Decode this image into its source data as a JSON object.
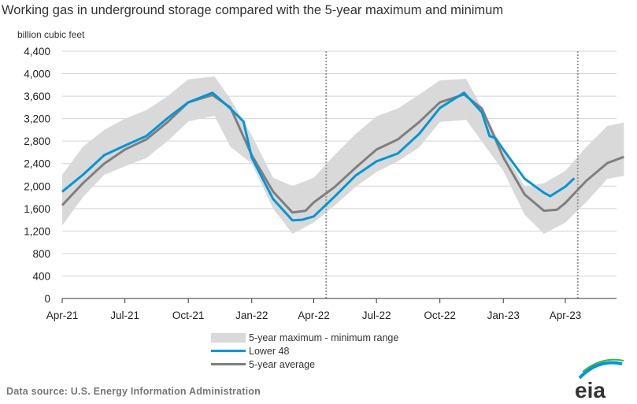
{
  "chart_data": {
    "type": "line",
    "title": "Working gas in underground  storage compared with the 5-year maximum and minimum",
    "ylabel": "billion cubic feet",
    "xlabel": "",
    "ylim": [
      0,
      4400
    ],
    "yticks": [
      "0",
      "400",
      "800",
      "1,200",
      "1,600",
      "2,000",
      "2,400",
      "2,800",
      "3,200",
      "3,600",
      "4,000",
      "4,400"
    ],
    "ytick_values": [
      0,
      400,
      800,
      1200,
      1600,
      2000,
      2400,
      2800,
      3200,
      3600,
      4000,
      4400
    ],
    "xticks": [
      {
        "label": "Apr-21",
        "date": "2021-04-01"
      },
      {
        "label": "Jul-21",
        "date": "2021-07-01"
      },
      {
        "label": "Oct-21",
        "date": "2021-10-01"
      },
      {
        "label": "Jan-22",
        "date": "2022-01-01"
      },
      {
        "label": "Apr-22",
        "date": "2022-04-01"
      },
      {
        "label": "Jul-22",
        "date": "2022-07-01"
      },
      {
        "label": "Oct-22",
        "date": "2022-10-01"
      },
      {
        "label": "Jan-23",
        "date": "2023-01-01"
      },
      {
        "label": "Apr-23",
        "date": "2023-04-01"
      }
    ],
    "grid": true,
    "reference_lines": [
      "2022-04-19",
      "2023-04-19"
    ],
    "legend_position": "bottom",
    "range": {
      "name": "5-year maximum - minimum range",
      "color": "#d9d9d9",
      "x": [
        "2021-04-01",
        "2021-05-01",
        "2021-06-01",
        "2021-07-01",
        "2021-08-01",
        "2021-09-01",
        "2021-10-01",
        "2021-11-08",
        "2021-12-01",
        "2022-01-01",
        "2022-02-01",
        "2022-03-01",
        "2022-04-01",
        "2022-05-01",
        "2022-06-01",
        "2022-07-01",
        "2022-08-01",
        "2022-09-01",
        "2022-10-01",
        "2022-11-08",
        "2022-12-01",
        "2023-01-01",
        "2023-02-01",
        "2023-03-01",
        "2023-04-01",
        "2023-05-01",
        "2023-06-01",
        "2023-06-25"
      ],
      "max": [
        2200,
        2700,
        3000,
        3200,
        3350,
        3600,
        3900,
        3950,
        3550,
        2900,
        2150,
        2000,
        2150,
        2550,
        2930,
        3240,
        3380,
        3630,
        3880,
        3910,
        3390,
        2650,
        1990,
        2050,
        2270,
        2690,
        3070,
        3130
      ],
      "min": [
        1300,
        1800,
        2200,
        2350,
        2500,
        2800,
        3150,
        3250,
        2700,
        2400,
        1600,
        1150,
        1350,
        1650,
        1990,
        2250,
        2440,
        2690,
        3140,
        3180,
        2790,
        2270,
        1490,
        1150,
        1350,
        1710,
        2130,
        2180
      ]
    },
    "series": [
      {
        "name": "Lower 48",
        "color": "#0096d6",
        "x": [
          "2021-04-01",
          "2021-04-20",
          "2021-05-01",
          "2021-06-01",
          "2021-07-01",
          "2021-08-01",
          "2021-09-01",
          "2021-10-01",
          "2021-11-05",
          "2021-11-20",
          "2021-12-01",
          "2021-12-20",
          "2022-01-01",
          "2022-02-01",
          "2022-03-01",
          "2022-03-15",
          "2022-04-01",
          "2022-05-01",
          "2022-06-01",
          "2022-07-01",
          "2022-08-01",
          "2022-09-01",
          "2022-10-01",
          "2022-11-05",
          "2022-12-01",
          "2022-12-12",
          "2022-12-20",
          "2023-01-01",
          "2023-02-01",
          "2023-03-01",
          "2023-03-10",
          "2023-04-01",
          "2023-04-14"
        ],
        "values": [
          1900,
          2090,
          2200,
          2550,
          2720,
          2890,
          3210,
          3490,
          3660,
          3500,
          3380,
          3150,
          2510,
          1770,
          1390,
          1400,
          1460,
          1810,
          2190,
          2440,
          2580,
          2930,
          3390,
          3660,
          3310,
          2890,
          2860,
          2650,
          2130,
          1880,
          1820,
          1990,
          2140
        ]
      },
      {
        "name": "5-year average",
        "color": "#7f7f7f",
        "x": [
          "2021-04-01",
          "2021-05-01",
          "2021-06-01",
          "2021-07-01",
          "2021-08-01",
          "2021-09-01",
          "2021-10-01",
          "2021-11-05",
          "2021-12-01",
          "2022-01-01",
          "2022-02-01",
          "2022-03-01",
          "2022-03-20",
          "2022-04-01",
          "2022-05-01",
          "2022-06-01",
          "2022-07-01",
          "2022-08-01",
          "2022-09-01",
          "2022-10-01",
          "2022-11-05",
          "2022-12-01",
          "2023-01-01",
          "2023-02-01",
          "2023-03-01",
          "2023-03-20",
          "2023-04-01",
          "2023-05-01",
          "2023-06-01",
          "2023-06-25"
        ],
        "values": [
          1660,
          2050,
          2400,
          2650,
          2830,
          3140,
          3490,
          3620,
          3400,
          2550,
          1900,
          1530,
          1560,
          1710,
          1980,
          2330,
          2650,
          2830,
          3140,
          3490,
          3630,
          3380,
          2510,
          1850,
          1560,
          1580,
          1700,
          2090,
          2410,
          2520
        ]
      }
    ]
  },
  "legend": {
    "range_label": "5-year maximum - minimum range",
    "lower48_label": "Lower 48",
    "avg_label": "5-year average"
  },
  "source": "Data source:  U.S. Energy Information Administration",
  "logo": {
    "text": "eia",
    "color": "#0096d6"
  }
}
